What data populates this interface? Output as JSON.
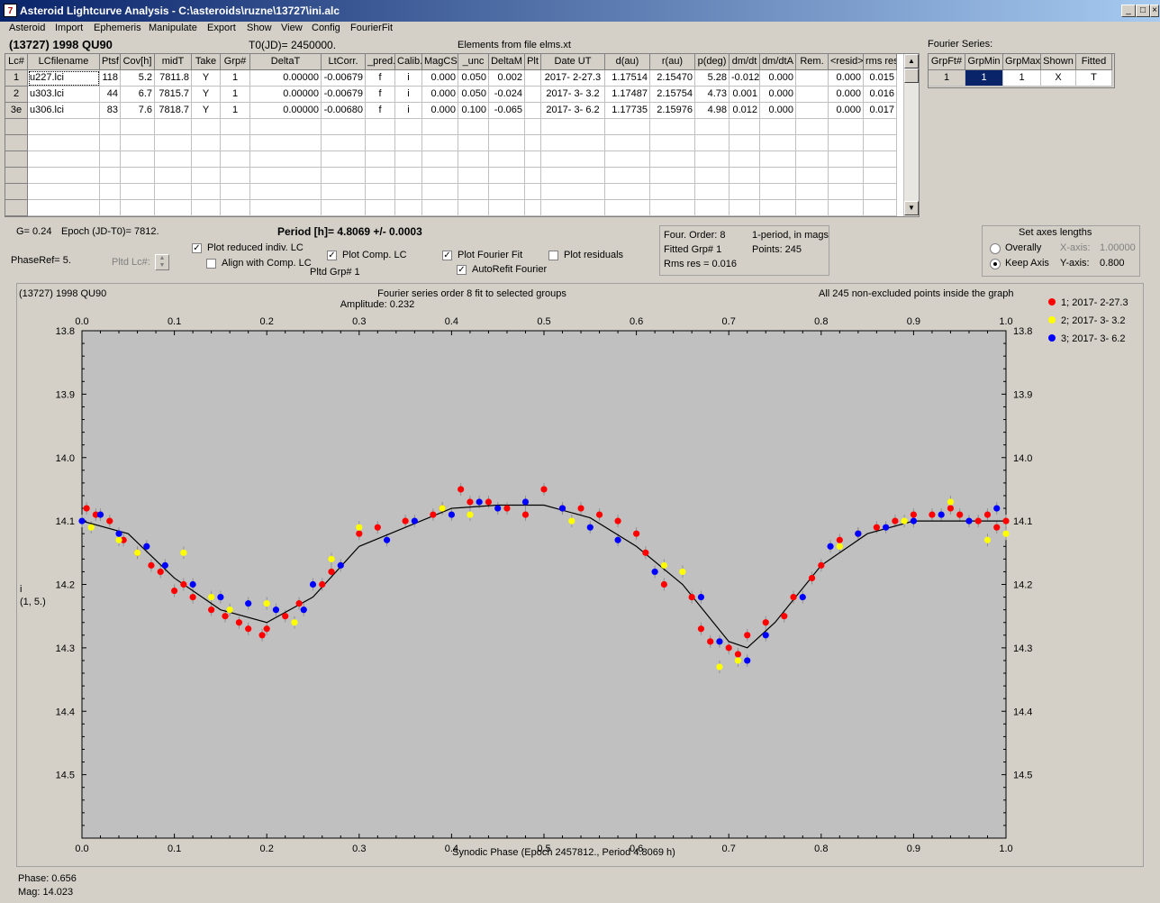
{
  "window": {
    "title": "Asteroid Lightcurve Analysis - C:\\asteroids\\ruzne\\13727\\ini.alc",
    "min_glyph": "_",
    "max_glyph": "□",
    "close_glyph": "×"
  },
  "menu": [
    "Asteroid",
    "Import",
    "Ephemeris",
    "Manipulate",
    "Export",
    "Show",
    "View",
    "Config",
    "FourierFit"
  ],
  "header": {
    "asteroid": "(13727) 1998 QU90",
    "t0": "T0(JD)= 2450000.",
    "elements": "Elements from file elms.xt",
    "fourier_series_label": "Fourier Series:"
  },
  "lc_table": {
    "columns": [
      "Lc#",
      "LCfilename",
      "Ptsf",
      "Cov[h]",
      "midT",
      "Take",
      "Grp#",
      "DeltaT",
      "LtCorr.",
      "_pred.",
      "Calib.",
      "MagCS",
      "_unc",
      "DeltaM",
      "Plt",
      "Date UT",
      "d(au)",
      "r(au)",
      "p(deg)",
      "dm/dt",
      "dm/dtA",
      "Rem.",
      "<resid>",
      "rms res"
    ],
    "rows": [
      [
        "1",
        "u227.lci",
        "118",
        "5.2",
        "7811.8",
        "Y",
        "1",
        "0.00000",
        "-0.00679",
        "f",
        "i",
        "0.000",
        "0.050",
        "0.002",
        "",
        "2017- 2-27.3",
        "1.17514",
        "2.15470",
        "5.28",
        "-0.012",
        "0.000",
        "",
        "0.000",
        "0.015"
      ],
      [
        "2",
        "u303.lci",
        "44",
        "6.7",
        "7815.7",
        "Y",
        "1",
        "0.00000",
        "-0.00679",
        "f",
        "i",
        "0.000",
        "0.050",
        "-0.024",
        "",
        "2017- 3- 3.2",
        "1.17487",
        "2.15754",
        "4.73",
        "0.001",
        "0.000",
        "",
        "0.000",
        "0.016"
      ],
      [
        "3e",
        "u306.lci",
        "83",
        "7.6",
        "7818.7",
        "Y",
        "1",
        "0.00000",
        "-0.00680",
        "f",
        "i",
        "0.000",
        "0.100",
        "-0.065",
        "",
        "2017- 3- 6.2",
        "1.17735",
        "2.15976",
        "4.98",
        "0.012",
        "0.000",
        "",
        "0.000",
        "0.017"
      ]
    ],
    "scroll_up": "▲",
    "scroll_down": "▼"
  },
  "fourier_table": {
    "columns": [
      "GrpFt#",
      "GrpMin",
      "GrpMax",
      "Shown",
      "Fitted"
    ],
    "rows": [
      [
        "1",
        "1",
        "1",
        "X",
        "T"
      ]
    ]
  },
  "controls": {
    "g_label": "G= 0.24",
    "epoch_label": "Epoch (JD-T0)= 7812.",
    "period_label": "Period [h]= 4.8069 +/- 0.0003",
    "phaseref_label": "PhaseRef= 5.",
    "pltd_lc_label": "Pltd Lc#:",
    "pltd_grp_label": "Pltd Grp#  1",
    "cb_plot_reduced": "Plot reduced indiv. LC",
    "cb_align": "Align with Comp. LC",
    "cb_plot_comp": "Plot Comp. LC",
    "cb_plot_fourier": "Plot Fourier Fit",
    "cb_autorefit": "AutoRefit Fourier",
    "cb_plot_residuals": "Plot residuals",
    "checked": {
      "plot_reduced": true,
      "align": false,
      "plot_comp": true,
      "plot_fourier": true,
      "autorefit": true,
      "plot_residuals": false
    },
    "fit_info": {
      "four_order": "Four. Order:  8",
      "one_period": "1-period, in mags",
      "fitted_grp": "Fitted Grp# 1",
      "points": "Points: 245",
      "rms_res": "Rms res     = 0.016"
    },
    "axes": {
      "title": "Set axes lengths",
      "overally": "Overally",
      "keep_axis": "Keep Axis",
      "x_axis_label": "X-axis:",
      "x_axis_value": "1.00000",
      "y_axis_label": "Y-axis:",
      "y_axis_value": "0.800",
      "selected": "keep_axis"
    }
  },
  "plot": {
    "name": "(13727) 1998 QU90",
    "title_line1": "Fourier series order 8 fit to selected groups",
    "title_line2": "Amplitude: 0.232",
    "note": "All 245 non-excluded points inside the graph",
    "ylabel_line1": "i",
    "ylabel_line2": "(1, 5.)",
    "xlabel": "Synodic Phase (Epoch 2457812., Period 4.8069 h)",
    "legend": [
      {
        "label": "1; 2017- 2-27.3",
        "color": "#ff0000"
      },
      {
        "label": "2; 2017- 3- 3.2",
        "color": "#ffff00"
      },
      {
        "label": "3; 2017- 3- 6.2",
        "color": "#0000ff"
      }
    ]
  },
  "chart_data": {
    "type": "scatter",
    "xlim": [
      0.0,
      1.0
    ],
    "ylim": [
      13.8,
      14.6
    ],
    "y_inverted": true,
    "x_ticks": [
      "0.0",
      "0.1",
      "0.2",
      "0.3",
      "0.4",
      "0.5",
      "0.6",
      "0.7",
      "0.8",
      "0.9",
      "1.0"
    ],
    "y_ticks": [
      "13.8",
      "13.9",
      "14.0",
      "14.1",
      "14.2",
      "14.3",
      "14.4",
      "14.5"
    ],
    "background": "#c0c0c0",
    "grid": false,
    "fit_curve": {
      "name": "Fourier fit",
      "color": "#000000",
      "x": [
        0.0,
        0.05,
        0.1,
        0.15,
        0.2,
        0.25,
        0.3,
        0.35,
        0.4,
        0.45,
        0.5,
        0.55,
        0.6,
        0.65,
        0.7,
        0.72,
        0.75,
        0.8,
        0.85,
        0.9,
        0.95,
        1.0
      ],
      "y": [
        14.1,
        14.12,
        14.19,
        14.24,
        14.26,
        14.22,
        14.14,
        14.11,
        14.08,
        14.075,
        14.075,
        14.095,
        14.14,
        14.2,
        14.29,
        14.3,
        14.26,
        14.17,
        14.12,
        14.1,
        14.1,
        14.1
      ]
    },
    "series": [
      {
        "name": "1; 2017- 2-27.3",
        "color": "#ff0000",
        "x": [
          0.005,
          0.015,
          0.03,
          0.045,
          0.06,
          0.075,
          0.085,
          0.1,
          0.11,
          0.12,
          0.14,
          0.155,
          0.17,
          0.18,
          0.195,
          0.2,
          0.22,
          0.235,
          0.26,
          0.27,
          0.3,
          0.32,
          0.35,
          0.38,
          0.39,
          0.41,
          0.42,
          0.44,
          0.46,
          0.48,
          0.5,
          0.52,
          0.54,
          0.56,
          0.58,
          0.6,
          0.61,
          0.63,
          0.66,
          0.67,
          0.68,
          0.7,
          0.71,
          0.72,
          0.74,
          0.76,
          0.77,
          0.79,
          0.8,
          0.82,
          0.84,
          0.86,
          0.88,
          0.9,
          0.92,
          0.94,
          0.95,
          0.97,
          0.98,
          0.99,
          1.0
        ],
        "y": [
          14.08,
          14.09,
          14.1,
          14.13,
          14.15,
          14.17,
          14.18,
          14.21,
          14.2,
          14.22,
          14.24,
          14.25,
          14.26,
          14.27,
          14.28,
          14.27,
          14.25,
          14.23,
          14.2,
          14.18,
          14.12,
          14.11,
          14.1,
          14.09,
          14.08,
          14.05,
          14.07,
          14.07,
          14.08,
          14.09,
          14.05,
          14.08,
          14.08,
          14.09,
          14.1,
          14.12,
          14.15,
          14.2,
          14.22,
          14.27,
          14.29,
          14.3,
          14.31,
          14.28,
          14.26,
          14.25,
          14.22,
          14.19,
          14.17,
          14.13,
          14.12,
          14.11,
          14.1,
          14.09,
          14.09,
          14.08,
          14.09,
          14.1,
          14.09,
          14.11,
          14.1
        ]
      },
      {
        "name": "2; 2017- 3- 3.2",
        "color": "#ffff00",
        "x": [
          0.01,
          0.04,
          0.06,
          0.11,
          0.14,
          0.16,
          0.2,
          0.23,
          0.27,
          0.3,
          0.39,
          0.42,
          0.53,
          0.63,
          0.65,
          0.69,
          0.71,
          0.82,
          0.89,
          0.94,
          0.98,
          1.0
        ],
        "y": [
          14.11,
          14.13,
          14.15,
          14.15,
          14.22,
          14.24,
          14.23,
          14.26,
          14.16,
          14.11,
          14.08,
          14.09,
          14.1,
          14.17,
          14.18,
          14.33,
          14.32,
          14.14,
          14.1,
          14.07,
          14.13,
          14.12
        ]
      },
      {
        "name": "3; 2017- 3- 6.2",
        "color": "#0000ff",
        "x": [
          0.0,
          0.02,
          0.04,
          0.07,
          0.09,
          0.12,
          0.15,
          0.18,
          0.21,
          0.24,
          0.25,
          0.28,
          0.33,
          0.36,
          0.4,
          0.43,
          0.45,
          0.48,
          0.52,
          0.55,
          0.58,
          0.62,
          0.67,
          0.69,
          0.72,
          0.74,
          0.78,
          0.81,
          0.84,
          0.87,
          0.9,
          0.93,
          0.96,
          0.99
        ],
        "y": [
          14.1,
          14.09,
          14.12,
          14.14,
          14.17,
          14.2,
          14.22,
          14.23,
          14.24,
          14.24,
          14.2,
          14.17,
          14.13,
          14.1,
          14.09,
          14.07,
          14.08,
          14.07,
          14.08,
          14.11,
          14.13,
          14.18,
          14.22,
          14.29,
          14.32,
          14.28,
          14.22,
          14.14,
          14.12,
          14.11,
          14.1,
          14.09,
          14.1,
          14.08
        ]
      }
    ]
  },
  "status": {
    "phase": "Phase:  0.656",
    "mag": "Mag:    14.023"
  }
}
